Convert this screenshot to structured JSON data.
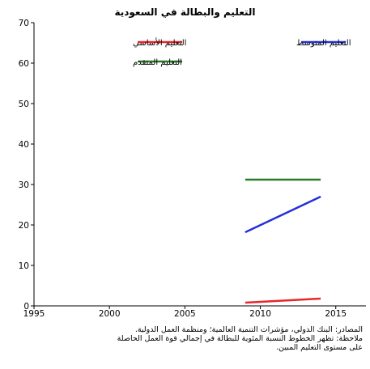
{
  "chart_data": {
    "type": "line",
    "title": "التعليم والبطالة في السعودية",
    "xlabel": "",
    "ylabel": "",
    "xlim": [
      1995,
      2017
    ],
    "ylim": [
      0,
      70
    ],
    "x_ticks": [
      1995,
      2000,
      2005,
      2010,
      2015
    ],
    "y_ticks": [
      0,
      10,
      20,
      30,
      40,
      50,
      60,
      70
    ],
    "grid": false,
    "legend_placement": "top",
    "series": [
      {
        "name": "التعليم الأساسي",
        "color": "#e8262b",
        "x": [
          2009,
          2014
        ],
        "values": [
          0.8,
          1.8
        ]
      },
      {
        "name": "التعليم المتوسط",
        "color": "#2530d8",
        "x": [
          2009,
          2014
        ],
        "values": [
          18.2,
          27.0
        ]
      },
      {
        "name": "التعليم المتقدم",
        "color": "#2a7a2a",
        "x": [
          2009,
          2014
        ],
        "values": [
          31.2,
          31.2
        ]
      }
    ]
  },
  "notes": {
    "source": "المصادر: البنك الدولي، مؤشرات التنمية العالمية؛ ومنظمة العمل الدولية.",
    "note_line1": "ملاحظة: تظهر الخطوط النسبة المئوية للبطالة في إجمالي قوة العمل الحاصلة",
    "note_line2": "على مستوى التعليم المبين."
  }
}
